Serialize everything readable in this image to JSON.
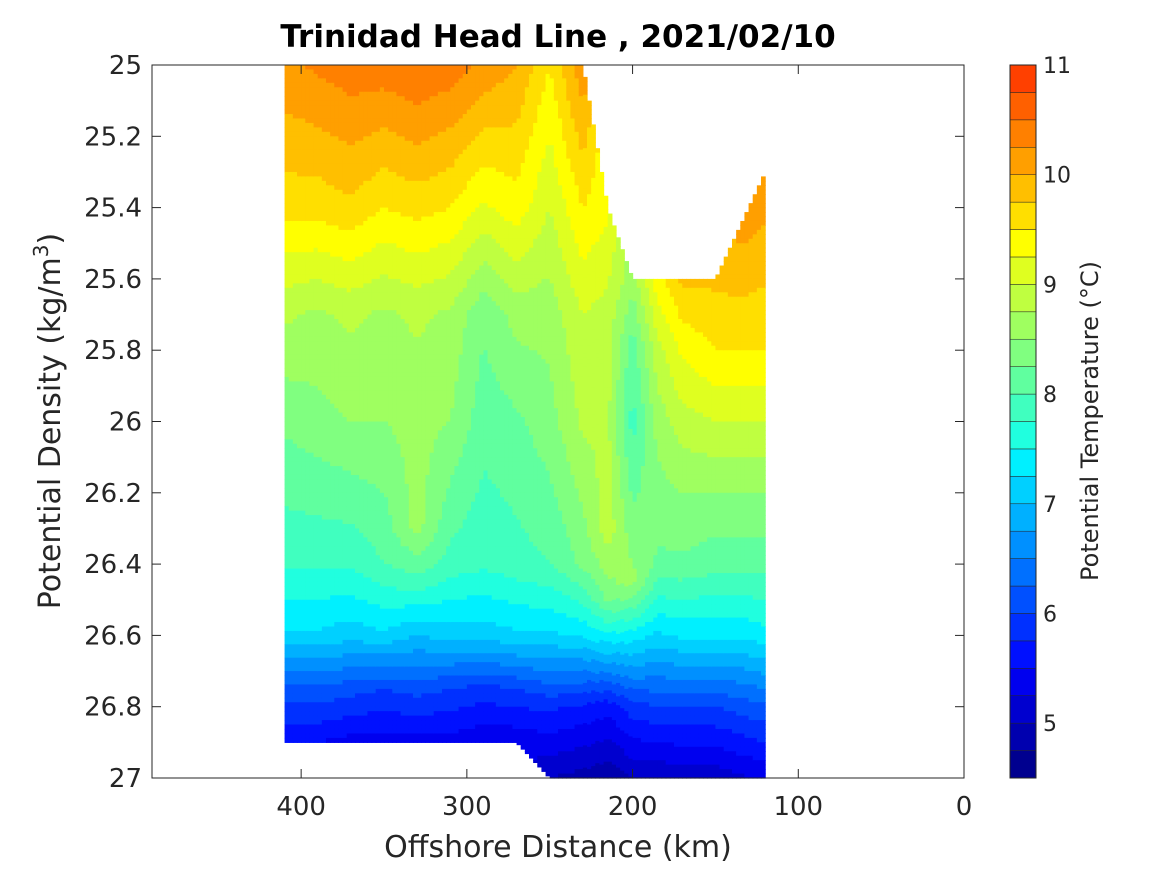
{
  "chart_data": {
    "type": "heatmap",
    "title": "Trinidad Head Line , 2021/02/10",
    "xlabel": "Offshore Distance (km)",
    "ylabel_main": "Potential Density (kg/m",
    "ylabel_sup": "3",
    "ylabel_close": ")",
    "xlim": [
      490,
      0
    ],
    "ylim": [
      25,
      27
    ],
    "x_ticks": [
      400,
      300,
      200,
      100,
      0
    ],
    "x_tick_labels": [
      "400",
      "300",
      "200",
      "100",
      "0"
    ],
    "y_ticks": [
      25,
      25.2,
      25.4,
      25.6,
      25.8,
      26,
      26.2,
      26.4,
      26.6,
      26.8,
      27
    ],
    "y_tick_labels": [
      "25",
      "25.2",
      "25.4",
      "25.6",
      "25.8",
      "26",
      "26.2",
      "26.4",
      "26.6",
      "26.8",
      "27"
    ],
    "colorbar": {
      "label": "Potential Temperature (°C)",
      "range": [
        4.5,
        11
      ],
      "ticks": [
        5,
        6,
        7,
        8,
        9,
        10,
        11
      ],
      "tick_labels": [
        "5",
        "6",
        "7",
        "8",
        "9",
        "10",
        "11"
      ],
      "levels": [
        4.5,
        4.75,
        5,
        5.25,
        5.5,
        5.75,
        6,
        6.25,
        6.5,
        6.75,
        7,
        7.25,
        7.5,
        7.75,
        8,
        8.25,
        8.5,
        8.75,
        9,
        9.25,
        9.5,
        9.75,
        10,
        10.25,
        10.5,
        10.75,
        11
      ],
      "colors": [
        "#00008f",
        "#0000af",
        "#0000cf",
        "#0000ef",
        "#0010ff",
        "#0030ff",
        "#0050ff",
        "#0070ff",
        "#0090ff",
        "#00b0ff",
        "#00d0ff",
        "#00f0ff",
        "#20ffdf",
        "#40ffbf",
        "#60ff9f",
        "#80ff80",
        "#9fff60",
        "#bfff40",
        "#dfff20",
        "#ffff00",
        "#ffdf00",
        "#ffbf00",
        "#ff9f00",
        "#ff8000",
        "#ff6000",
        "#ff4000",
        "#ff2000",
        "#ff0000",
        "#df0000",
        "#bf0000",
        "#9f0000"
      ]
    },
    "data_columns": {
      "distance_km": [
        410,
        390,
        370,
        350,
        330,
        310,
        290,
        270,
        250,
        230,
        215,
        200,
        185,
        170,
        150,
        135,
        120
      ],
      "density_top": [
        25,
        25,
        25,
        25,
        25,
        25,
        25,
        25,
        25,
        25,
        25.4,
        25.6,
        25.6,
        25.6,
        25.6,
        25.45,
        25.3
      ],
      "density_bottom": [
        26.9,
        26.9,
        26.9,
        26.9,
        26.9,
        26.9,
        26.9,
        26.9,
        27,
        27,
        27,
        27,
        27,
        27,
        27,
        27,
        27
      ],
      "temperature_profiles": [
        [
          [
            25,
            10.2
          ],
          [
            25.4,
            9.6
          ],
          [
            25.7,
            8.8
          ],
          [
            26,
            8.3
          ],
          [
            26.4,
            7.8
          ],
          [
            26.6,
            7.2
          ],
          [
            26.75,
            6.2
          ],
          [
            26.9,
            5.5
          ]
        ],
        [
          [
            25,
            10.3
          ],
          [
            25.4,
            9.6
          ],
          [
            25.7,
            8.7
          ],
          [
            26,
            8.4
          ],
          [
            26.4,
            7.8
          ],
          [
            26.6,
            7.2
          ],
          [
            26.75,
            6.2
          ],
          [
            26.9,
            5.5
          ]
        ],
        [
          [
            25,
            10.4
          ],
          [
            25.4,
            9.7
          ],
          [
            25.7,
            8.8
          ],
          [
            26,
            8.5
          ],
          [
            26.4,
            7.8
          ],
          [
            26.6,
            7.1
          ],
          [
            26.75,
            6.1
          ],
          [
            26.9,
            5.4
          ]
        ],
        [
          [
            25,
            10.4
          ],
          [
            25.4,
            9.5
          ],
          [
            25.7,
            8.7
          ],
          [
            26,
            8.5
          ],
          [
            26.4,
            8.0
          ],
          [
            26.6,
            7.2
          ],
          [
            26.75,
            6.0
          ],
          [
            26.9,
            5.4
          ]
        ],
        [
          [
            25,
            10.5
          ],
          [
            25.4,
            9.6
          ],
          [
            25.7,
            8.8
          ],
          [
            26,
            8.6
          ],
          [
            26.3,
            8.6
          ],
          [
            26.45,
            7.9
          ],
          [
            26.75,
            6.1
          ],
          [
            26.9,
            5.4
          ]
        ],
        [
          [
            25,
            10.4
          ],
          [
            25.4,
            9.5
          ],
          [
            25.7,
            8.7
          ],
          [
            26,
            8.5
          ],
          [
            26.4,
            7.9
          ],
          [
            26.6,
            7.1
          ],
          [
            26.75,
            6.0
          ],
          [
            26.9,
            5.4
          ]
        ],
        [
          [
            25,
            10.2
          ],
          [
            25.4,
            9.2
          ],
          [
            25.7,
            8.3
          ],
          [
            26,
            8.1
          ],
          [
            26.4,
            7.8
          ],
          [
            26.6,
            7.1
          ],
          [
            26.75,
            5.9
          ],
          [
            26.9,
            5.3
          ]
        ],
        [
          [
            25,
            10.0
          ],
          [
            25.4,
            9.4
          ],
          [
            25.7,
            8.6
          ],
          [
            26,
            8.2
          ],
          [
            26.4,
            7.9
          ],
          [
            26.6,
            7.2
          ],
          [
            26.75,
            6.0
          ],
          [
            26.9,
            5.3
          ]
        ],
        [
          [
            25,
            9.5
          ],
          [
            25.4,
            9.0
          ],
          [
            25.7,
            8.6
          ],
          [
            26,
            8.4
          ],
          [
            26.4,
            8.0
          ],
          [
            26.6,
            7.2
          ],
          [
            26.8,
            5.8
          ],
          [
            27,
            5.0
          ]
        ],
        [
          [
            25,
            10.2
          ],
          [
            25.4,
            9.5
          ],
          [
            25.7,
            9.0
          ],
          [
            26,
            8.8
          ],
          [
            26.4,
            8.3
          ],
          [
            26.6,
            7.3
          ],
          [
            26.8,
            5.7
          ],
          [
            27,
            4.9
          ]
        ],
        [
          [
            25.4,
            9.3
          ],
          [
            25.7,
            8.9
          ],
          [
            26,
            8.8
          ],
          [
            26.3,
            8.9
          ],
          [
            26.5,
            8.3
          ],
          [
            26.65,
            7.0
          ],
          [
            26.8,
            5.6
          ],
          [
            27,
            4.8
          ]
        ],
        [
          [
            25.6,
            8.6
          ],
          [
            25.8,
            8.1
          ],
          [
            26,
            7.9
          ],
          [
            26.2,
            8.2
          ],
          [
            26.45,
            8.6
          ],
          [
            26.6,
            7.4
          ],
          [
            26.8,
            5.9
          ],
          [
            27,
            5.0
          ]
        ],
        [
          [
            25.6,
            9.4
          ],
          [
            25.8,
            8.9
          ],
          [
            26,
            8.6
          ],
          [
            26.2,
            8.4
          ],
          [
            26.4,
            8.2
          ],
          [
            26.6,
            7.2
          ],
          [
            26.8,
            6.0
          ],
          [
            27,
            5.0
          ]
        ],
        [
          [
            25.6,
            9.8
          ],
          [
            25.8,
            9.3
          ],
          [
            26,
            8.9
          ],
          [
            26.2,
            8.5
          ],
          [
            26.4,
            8.2
          ],
          [
            26.6,
            7.3
          ],
          [
            26.8,
            6.0
          ],
          [
            27,
            5.1
          ]
        ],
        [
          [
            25.6,
            9.8
          ],
          [
            25.8,
            9.5
          ],
          [
            26,
            9.0
          ],
          [
            26.2,
            8.5
          ],
          [
            26.4,
            8.1
          ],
          [
            26.6,
            7.3
          ],
          [
            26.8,
            6.0
          ],
          [
            27,
            5.1
          ]
        ],
        [
          [
            25.45,
            10.1
          ],
          [
            25.8,
            9.5
          ],
          [
            26,
            9.0
          ],
          [
            26.2,
            8.5
          ],
          [
            26.4,
            8.1
          ],
          [
            26.6,
            7.3
          ],
          [
            26.8,
            6.1
          ],
          [
            27,
            5.2
          ]
        ],
        [
          [
            25.3,
            10.2
          ],
          [
            25.8,
            9.5
          ],
          [
            26,
            9.0
          ],
          [
            26.2,
            8.5
          ],
          [
            26.4,
            8.1
          ],
          [
            26.6,
            7.4
          ],
          [
            26.8,
            6.2
          ],
          [
            27,
            5.3
          ]
        ]
      ]
    }
  }
}
